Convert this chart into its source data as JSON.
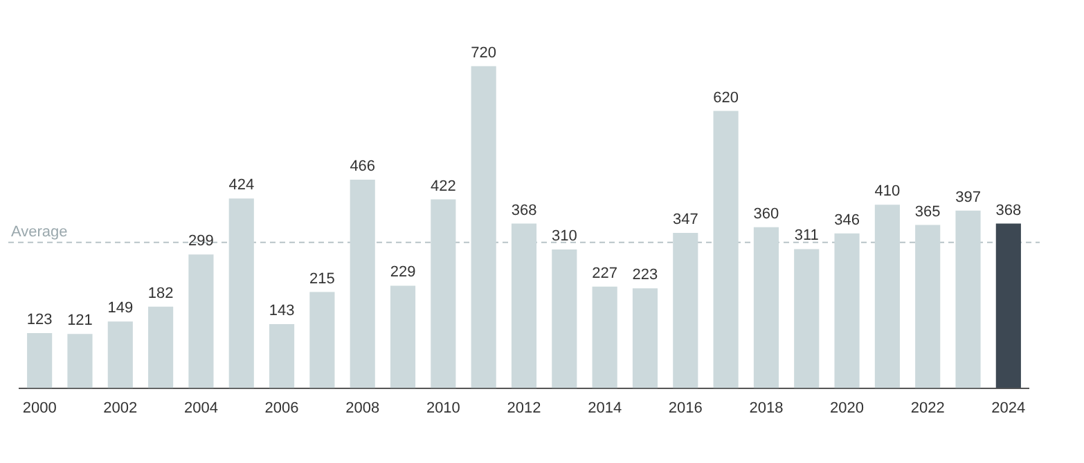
{
  "chart_data": {
    "type": "bar",
    "categories": [
      "2000",
      null,
      "2002",
      null,
      "2004",
      null,
      "2006",
      null,
      "2008",
      null,
      "2010",
      null,
      "2012",
      null,
      "2014",
      null,
      "2016",
      null,
      "2018",
      null,
      "2020",
      null,
      "2022",
      null,
      "2024"
    ],
    "values": [
      123,
      121,
      149,
      182,
      299,
      424,
      143,
      215,
      466,
      229,
      422,
      720,
      368,
      310,
      227,
      223,
      347,
      620,
      360,
      311,
      346,
      410,
      365,
      397,
      368
    ],
    "colors": [
      "#ccd9dc",
      "#ccd9dc",
      "#ccd9dc",
      "#ccd9dc",
      "#ccd9dc",
      "#ccd9dc",
      "#ccd9dc",
      "#ccd9dc",
      "#ccd9dc",
      "#ccd9dc",
      "#ccd9dc",
      "#ccd9dc",
      "#ccd9dc",
      "#ccd9dc",
      "#ccd9dc",
      "#ccd9dc",
      "#ccd9dc",
      "#ccd9dc",
      "#ccd9dc",
      "#ccd9dc",
      "#ccd9dc",
      "#ccd9dc",
      "#ccd9dc",
      "#ccd9dc",
      "#3d4853"
    ],
    "data_labels": true,
    "ref_lines": [
      {
        "axis": "y",
        "value": 326,
        "label": "Average",
        "color": "#b8c4c8",
        "line_style": "dashed"
      }
    ],
    "grid": false,
    "legend": false,
    "tick_labels": "x"
  }
}
